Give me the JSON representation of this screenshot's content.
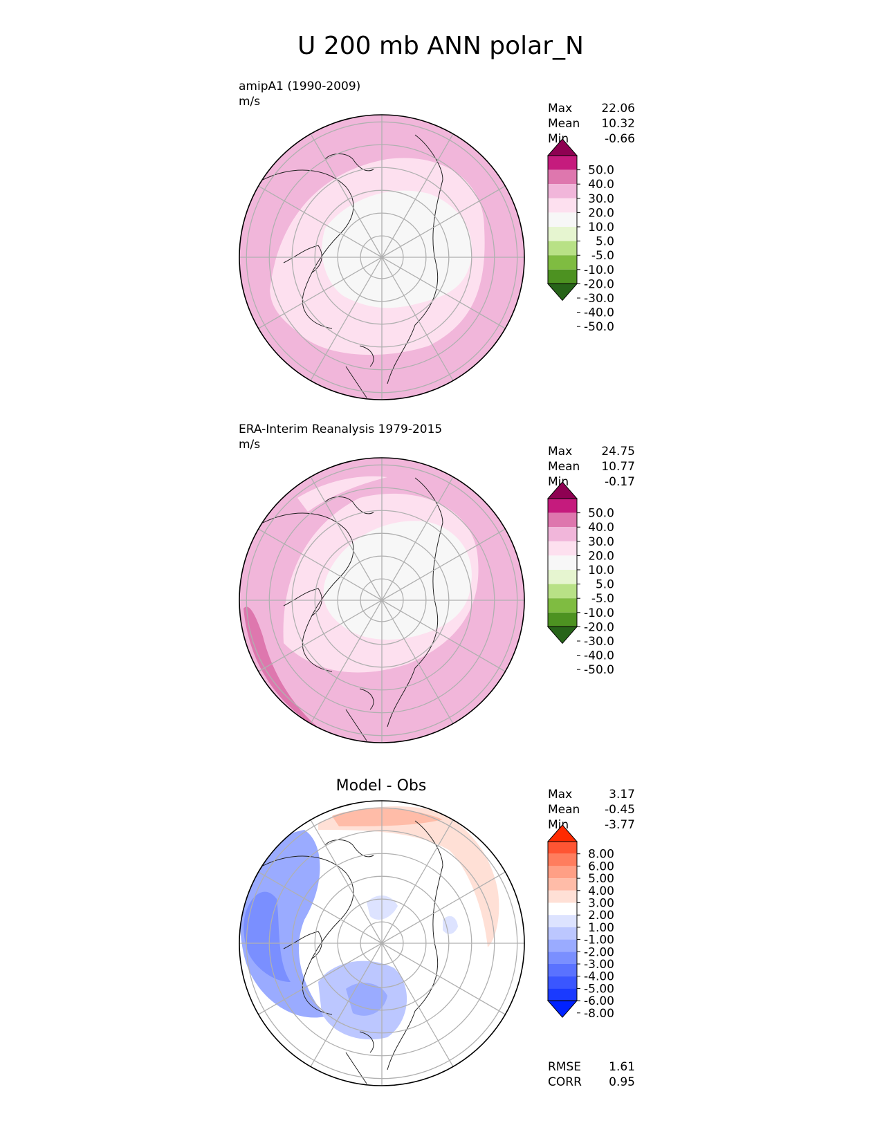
{
  "title": "U 200 mb ANN polar_N",
  "panels": [
    {
      "title": "amipA1 (1990-2009)",
      "units": "m/s",
      "center_title": "",
      "stats": [
        {
          "label": "Max",
          "value": "22.06"
        },
        {
          "label": "Mean",
          "value": "10.32"
        },
        {
          "label": "Min",
          "value": "-0.66"
        }
      ],
      "colorbar": {
        "tick_labels": [
          "50.0",
          "40.0",
          "30.0",
          "20.0",
          "10.0",
          "5.0",
          "-5.0",
          "-10.0",
          "-20.0",
          "-30.0",
          "-40.0",
          "-50.0"
        ],
        "colors": [
          "#8e0152",
          "#c51b7d",
          "#de77ae",
          "#f1b6da",
          "#fde0ef",
          "#f7f7f7",
          "#e6f5d0",
          "#b8e186",
          "#7fbc41",
          "#4d9221",
          "#276419"
        ]
      },
      "footer_stats": []
    },
    {
      "title": "ERA-Interim Reanalysis 1979-2015",
      "units": "m/s",
      "center_title": "",
      "stats": [
        {
          "label": "Max",
          "value": "24.75"
        },
        {
          "label": "Mean",
          "value": "10.77"
        },
        {
          "label": "Min",
          "value": "-0.17"
        }
      ],
      "colorbar": {
        "tick_labels": [
          "50.0",
          "40.0",
          "30.0",
          "20.0",
          "10.0",
          "5.0",
          "-5.0",
          "-10.0",
          "-20.0",
          "-30.0",
          "-40.0",
          "-50.0"
        ],
        "colors": [
          "#8e0152",
          "#c51b7d",
          "#de77ae",
          "#f1b6da",
          "#fde0ef",
          "#f7f7f7",
          "#e6f5d0",
          "#b8e186",
          "#7fbc41",
          "#4d9221",
          "#276419"
        ]
      },
      "footer_stats": []
    },
    {
      "title": "",
      "units": "",
      "center_title": "Model - Obs",
      "stats": [
        {
          "label": "Max",
          "value": "3.17"
        },
        {
          "label": "Mean",
          "value": "-0.45"
        },
        {
          "label": "Min",
          "value": "-3.77"
        }
      ],
      "colorbar": {
        "tick_labels": [
          "8.00",
          "6.00",
          "5.00",
          "4.00",
          "3.00",
          "2.00",
          "1.00",
          "-1.00",
          "-2.00",
          "-3.00",
          "-4.00",
          "-5.00",
          "-6.00",
          "-8.00"
        ],
        "colors": [
          "#ff2a00",
          "#ff5533",
          "#ff7d5e",
          "#ff9f85",
          "#ffbca8",
          "#ffe0d6",
          "#ffffff",
          "#dde3ff",
          "#bcc7ff",
          "#9aabff",
          "#7a8fff",
          "#5a72ff",
          "#3a56ff",
          "#1a3aff",
          "#0022ff"
        ]
      },
      "footer_stats": [
        {
          "label": "RMSE",
          "value": "1.61"
        },
        {
          "label": "CORR",
          "value": "0.95"
        }
      ]
    }
  ],
  "chart_data": [
    {
      "type": "heatmap",
      "projection": "polar stereographic (north)",
      "title": "amipA1 (1990-2009)",
      "units": "m/s",
      "stats": {
        "max": 22.06,
        "mean": 10.32,
        "min": -0.66
      },
      "levels": [
        -50,
        -40,
        -30,
        -20,
        -10,
        -5,
        5,
        10,
        20,
        30,
        40,
        50
      ],
      "colors": [
        "#8e0152",
        "#c51b7d",
        "#de77ae",
        "#f1b6da",
        "#fde0ef",
        "#f7f7f7",
        "#e6f5d0",
        "#b8e186",
        "#7fbc41",
        "#4d9221",
        "#276419"
      ],
      "extend": "both"
    },
    {
      "type": "heatmap",
      "projection": "polar stereographic (north)",
      "title": "ERA-Interim Reanalysis 1979-2015",
      "units": "m/s",
      "stats": {
        "max": 24.75,
        "mean": 10.77,
        "min": -0.17
      },
      "levels": [
        -50,
        -40,
        -30,
        -20,
        -10,
        -5,
        5,
        10,
        20,
        30,
        40,
        50
      ],
      "colors": [
        "#8e0152",
        "#c51b7d",
        "#de77ae",
        "#f1b6da",
        "#fde0ef",
        "#f7f7f7",
        "#e6f5d0",
        "#b8e186",
        "#7fbc41",
        "#4d9221",
        "#276419"
      ],
      "extend": "both"
    },
    {
      "type": "heatmap",
      "projection": "polar stereographic (north)",
      "title": "Model - Obs",
      "stats": {
        "max": 3.17,
        "mean": -0.45,
        "min": -3.77,
        "rmse": 1.61,
        "corr": 0.95
      },
      "levels": [
        -8,
        -6,
        -5,
        -4,
        -3,
        -2,
        -1,
        1,
        2,
        3,
        4,
        5,
        6,
        8
      ],
      "colors": [
        "#ff2a00",
        "#ff5533",
        "#ff7d5e",
        "#ff9f85",
        "#ffbca8",
        "#ffe0d6",
        "#ffffff",
        "#dde3ff",
        "#bcc7ff",
        "#9aabff",
        "#7a8fff",
        "#5a72ff",
        "#3a56ff",
        "#1a3aff",
        "#0022ff"
      ],
      "extend": "both"
    }
  ]
}
